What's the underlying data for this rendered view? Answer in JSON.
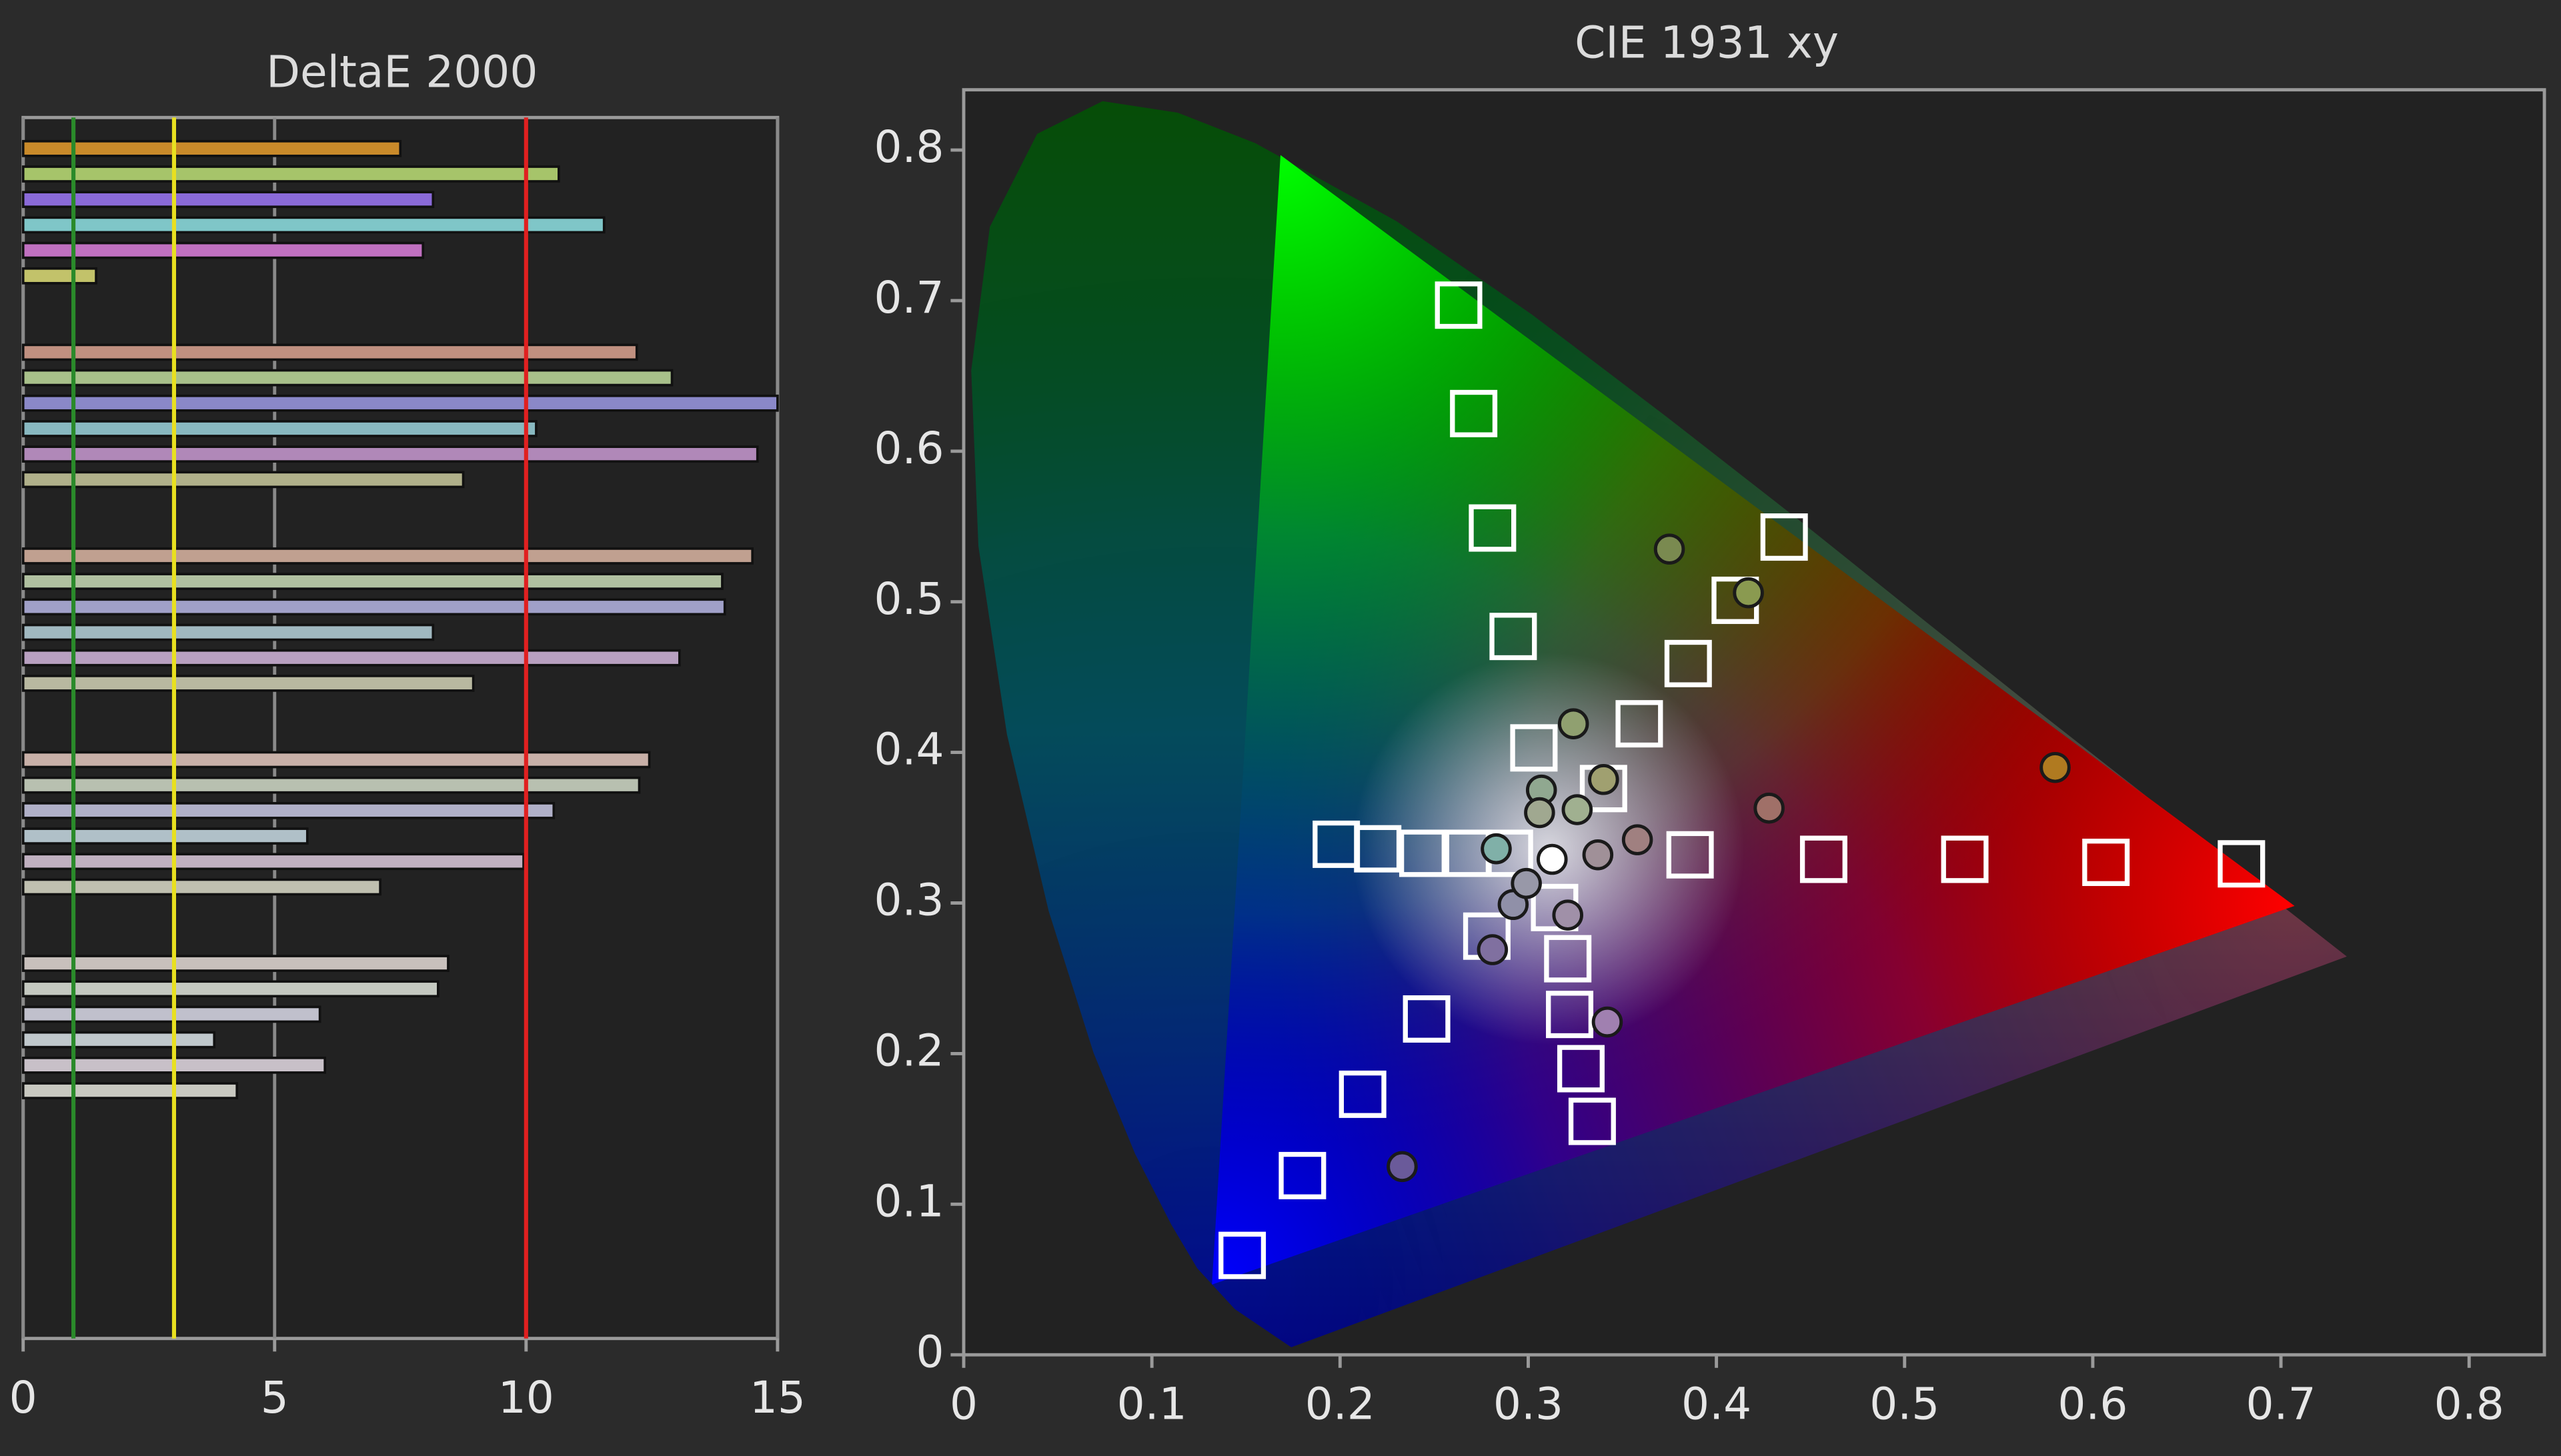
{
  "chart_data": [
    {
      "type": "bar",
      "orientation": "horizontal",
      "title": "DeltaE 2000",
      "values": [
        7.5,
        10.65,
        8.15,
        11.55,
        7.95,
        1.45,
        null,
        null,
        12.2,
        12.9,
        15.0,
        10.2,
        14.6,
        8.75,
        null,
        null,
        14.5,
        13.9,
        13.95,
        8.15,
        13.05,
        8.95,
        null,
        null,
        12.45,
        12.25,
        10.55,
        5.65,
        9.95,
        7.1,
        null,
        null,
        8.45,
        8.25,
        5.9,
        3.8,
        6.0,
        4.25
      ],
      "colors": [
        "#c98a2a",
        "#a6c46a",
        "#8a6ad8",
        "#7fc6c8",
        "#c070c0",
        "#c2c26a",
        null,
        null,
        "#c09080",
        "#a8c08a",
        "#8a88c8",
        "#88b8c0",
        "#b088b8",
        "#b0b08a",
        null,
        null,
        "#c0a090",
        "#b0c0a0",
        "#a0a0c8",
        "#a0b8c0",
        "#b8a0c0",
        "#b8b8a0",
        null,
        null,
        "#c8b0a8",
        "#b8c0b0",
        "#b0b0c8",
        "#b0c0c8",
        "#c0b0c0",
        "#c0c0b0",
        null,
        null,
        "#c8c0bc",
        "#c4c8c0",
        "#c0c0cc",
        "#c0c8cc",
        "#c8c0c8",
        "#c8c8c0"
      ],
      "xlim": [
        0,
        15
      ],
      "xticks": [
        0,
        5,
        10,
        15
      ],
      "grid": true,
      "reference_lines": [
        {
          "value": 1,
          "color": "#2a8a2a"
        },
        {
          "value": 3,
          "color": "#e8e020"
        },
        {
          "value": 10,
          "color": "#e02020"
        }
      ]
    },
    {
      "type": "scatter",
      "title": "CIE 1931 xy",
      "xlim": [
        0,
        0.84
      ],
      "ylim": [
        0,
        0.84
      ],
      "xticks": [
        0,
        0.1,
        0.2,
        0.3,
        0.4,
        0.5,
        0.6,
        0.7,
        0.8
      ],
      "yticks": [
        0,
        0.1,
        0.2,
        0.3,
        0.4,
        0.5,
        0.6,
        0.7,
        0.8
      ],
      "series": [
        {
          "marker": "square",
          "color": "#ffffff",
          "x": [
            0.263,
            0.271,
            0.281,
            0.292,
            0.303,
            0.436,
            0.41,
            0.385,
            0.359,
            0.34,
            0.386,
            0.457,
            0.532,
            0.607,
            0.679,
            0.198,
            0.22,
            0.244,
            0.268,
            0.29,
            0.148,
            0.18,
            0.212,
            0.246,
            0.278,
            0.334,
            0.328,
            0.322,
            0.321,
            0.314
          ],
          "y": [
            0.697,
            0.625,
            0.549,
            0.477,
            0.403,
            0.543,
            0.501,
            0.459,
            0.419,
            0.376,
            0.332,
            0.329,
            0.329,
            0.327,
            0.326,
            0.339,
            0.336,
            0.333,
            0.333,
            0.333,
            0.066,
            0.119,
            0.173,
            0.223,
            0.278,
            0.155,
            0.19,
            0.226,
            0.263,
            0.297
          ]
        },
        {
          "marker": "circle",
          "x": [
            0.375,
            0.417,
            0.324,
            0.34,
            0.58,
            0.428,
            0.358,
            0.307,
            0.326,
            0.337,
            0.283,
            0.292,
            0.281,
            0.321,
            0.342,
            0.233,
            0.306,
            0.299,
            0.3127
          ],
          "y": [
            0.535,
            0.506,
            0.419,
            0.382,
            0.39,
            0.363,
            0.342,
            0.375,
            0.362,
            0.332,
            0.336,
            0.299,
            0.269,
            0.292,
            0.221,
            0.125,
            0.36,
            0.313,
            0.329
          ],
          "colors": [
            "#7a8a50",
            "#8a9a50",
            "#90a070",
            "#a0a070",
            "#b07a20",
            "#a07068",
            "#a08080",
            "#90a890",
            "#a0b090",
            "#a09098",
            "#80b0a8",
            "#9090a8",
            "#8070a0",
            "#a090a8",
            "#a080b0",
            "#6a5a9a",
            "#a0a890",
            "#9898a8",
            "#ffffff"
          ]
        }
      ]
    }
  ]
}
